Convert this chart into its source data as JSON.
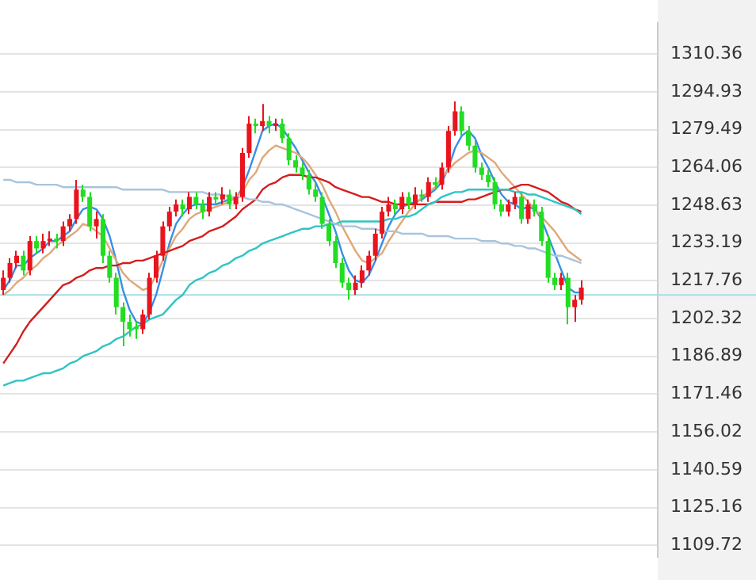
{
  "chart_data": {
    "type": "candlestick",
    "categories": [
      null,
      null,
      null,
      null,
      null,
      null,
      null,
      null,
      null,
      null,
      null,
      null,
      null,
      null,
      null,
      null,
      null,
      null,
      null,
      null,
      null,
      null,
      null,
      null,
      null,
      null,
      null,
      null,
      null,
      null,
      null,
      null,
      null,
      null,
      null,
      null,
      null,
      null,
      null,
      null,
      null,
      null,
      null,
      null,
      null,
      null,
      null,
      null,
      null,
      null,
      null,
      null,
      null,
      null,
      null,
      null,
      null,
      null,
      null,
      null,
      null,
      null,
      null,
      null,
      null,
      null,
      null,
      null,
      null,
      null,
      null,
      null,
      null,
      null,
      null,
      null,
      null,
      null,
      null,
      null,
      null,
      null,
      null,
      null,
      null,
      null,
      null,
      null,
      null,
      null,
      null,
      null,
      null,
      null,
      null,
      null,
      null,
      null,
      null
    ],
    "ohlc": [
      [
        1214,
        1222,
        1212,
        1219
      ],
      [
        1219,
        1227,
        1217,
        1225
      ],
      [
        1225,
        1230,
        1223,
        1228
      ],
      [
        1228,
        1230,
        1220,
        1222
      ],
      [
        1222,
        1236,
        1220,
        1234
      ],
      [
        1234,
        1236,
        1229,
        1231
      ],
      [
        1231,
        1237,
        1229,
        1234
      ],
      [
        1234,
        1238,
        1232,
        1235
      ],
      [
        1235,
        1237,
        1231,
        1234
      ],
      [
        1234,
        1242,
        1232,
        1240
      ],
      [
        1240,
        1245,
        1238,
        1243
      ],
      [
        1243,
        1259,
        1241,
        1255
      ],
      [
        1255,
        1257,
        1250,
        1252
      ],
      [
        1252,
        1254,
        1238,
        1240
      ],
      [
        1240,
        1246,
        1235,
        1243
      ],
      [
        1243,
        1245,
        1225,
        1228
      ],
      [
        1228,
        1230,
        1217,
        1219
      ],
      [
        1219,
        1221,
        1204,
        1207
      ],
      [
        1207,
        1209,
        1191,
        1201
      ],
      [
        1201,
        1204,
        1195,
        1198
      ],
      [
        1199,
        1201,
        1194,
        1198
      ],
      [
        1198,
        1206,
        1196,
        1204
      ],
      [
        1204,
        1221,
        1202,
        1219
      ],
      [
        1219,
        1230,
        1217,
        1228
      ],
      [
        1228,
        1242,
        1226,
        1240
      ],
      [
        1240,
        1248,
        1238,
        1246
      ],
      [
        1246,
        1251,
        1244,
        1249
      ],
      [
        1249,
        1251,
        1244,
        1247
      ],
      [
        1247,
        1254,
        1245,
        1252
      ],
      [
        1252,
        1254,
        1247,
        1249
      ],
      [
        1249,
        1251,
        1243,
        1246
      ],
      [
        1246,
        1254,
        1244,
        1252
      ],
      [
        1252,
        1254,
        1249,
        1251
      ],
      [
        1251,
        1256,
        1249,
        1253
      ],
      [
        1253,
        1255,
        1247,
        1249
      ],
      [
        1249,
        1254,
        1247,
        1252
      ],
      [
        1252,
        1272,
        1250,
        1270
      ],
      [
        1270,
        1285,
        1268,
        1282
      ],
      [
        1282,
        1284,
        1278,
        1281
      ],
      [
        1281,
        1290,
        1279,
        1283
      ],
      [
        1283,
        1285,
        1278,
        1281
      ],
      [
        1281,
        1284,
        1279,
        1282
      ],
      [
        1282,
        1284,
        1274,
        1276
      ],
      [
        1276,
        1278,
        1265,
        1267
      ],
      [
        1267,
        1269,
        1262,
        1264
      ],
      [
        1264,
        1266,
        1259,
        1261
      ],
      [
        1261,
        1263,
        1253,
        1255
      ],
      [
        1255,
        1258,
        1250,
        1252
      ],
      [
        1252,
        1254,
        1239,
        1241
      ],
      [
        1241,
        1243,
        1232,
        1234
      ],
      [
        1234,
        1236,
        1223,
        1225
      ],
      [
        1225,
        1227,
        1215,
        1217
      ],
      [
        1217,
        1219,
        1210,
        1214
      ],
      [
        1214,
        1220,
        1212,
        1217
      ],
      [
        1217,
        1224,
        1215,
        1222
      ],
      [
        1222,
        1230,
        1220,
        1228
      ],
      [
        1228,
        1239,
        1226,
        1237
      ],
      [
        1237,
        1248,
        1235,
        1246
      ],
      [
        1246,
        1252,
        1244,
        1249
      ],
      [
        1249,
        1251,
        1245,
        1247
      ],
      [
        1247,
        1254,
        1245,
        1252
      ],
      [
        1252,
        1254,
        1247,
        1249
      ],
      [
        1249,
        1256,
        1247,
        1253
      ],
      [
        1253,
        1255,
        1250,
        1252
      ],
      [
        1252,
        1260,
        1250,
        1258
      ],
      [
        1258,
        1260,
        1255,
        1257
      ],
      [
        1257,
        1266,
        1255,
        1264
      ],
      [
        1264,
        1281,
        1262,
        1279
      ],
      [
        1279,
        1291,
        1277,
        1287
      ],
      [
        1287,
        1289,
        1277,
        1279
      ],
      [
        1279,
        1281,
        1271,
        1273
      ],
      [
        1273,
        1275,
        1262,
        1264
      ],
      [
        1264,
        1266,
        1259,
        1261
      ],
      [
        1261,
        1263,
        1256,
        1258
      ],
      [
        1258,
        1260,
        1247,
        1249
      ],
      [
        1249,
        1251,
        1244,
        1246
      ],
      [
        1246,
        1251,
        1244,
        1249
      ],
      [
        1249,
        1254,
        1247,
        1252
      ],
      [
        1252,
        1254,
        1241,
        1243
      ],
      [
        1243,
        1251,
        1241,
        1249
      ],
      [
        1249,
        1251,
        1244,
        1246
      ],
      [
        1246,
        1248,
        1232,
        1234
      ],
      [
        1234,
        1236,
        1217,
        1219
      ],
      [
        1219,
        1221,
        1214,
        1216
      ],
      [
        1216,
        1221,
        1214,
        1219
      ],
      [
        1219,
        1221,
        1200,
        1207
      ],
      [
        1207,
        1212,
        1201,
        1210
      ],
      [
        1210,
        1218,
        1208,
        1215
      ],
      null,
      null,
      null,
      null,
      null,
      null,
      null,
      null,
      null,
      null,
      null
    ],
    "colors": [
      "#e8141e",
      "#e8141e",
      "#e8141e",
      "#22dd22",
      "#e8141e",
      "#22dd22",
      "#e8141e",
      "#e8141e",
      "#22dd22",
      "#e8141e",
      "#e8141e",
      "#e8141e",
      "#22dd22",
      "#22dd22",
      "#e8141e",
      "#22dd22",
      "#22dd22",
      "#22dd22",
      "#22dd22",
      "#22dd22",
      "#22dd22",
      "#e8141e",
      "#e8141e",
      "#e8141e",
      "#e8141e",
      "#e8141e",
      "#e8141e",
      "#22dd22",
      "#e8141e",
      "#22dd22",
      "#22dd22",
      "#e8141e",
      "#22dd22",
      "#e8141e",
      "#22dd22",
      "#e8141e",
      "#e8141e",
      "#e8141e",
      "#22dd22",
      "#e8141e",
      "#22dd22",
      "#e8141e",
      "#22dd22",
      "#22dd22",
      "#22dd22",
      "#22dd22",
      "#22dd22",
      "#22dd22",
      "#22dd22",
      "#22dd22",
      "#22dd22",
      "#22dd22",
      "#22dd22",
      "#e8141e",
      "#e8141e",
      "#e8141e",
      "#e8141e",
      "#e8141e",
      "#e8141e",
      "#22dd22",
      "#e8141e",
      "#22dd22",
      "#e8141e",
      "#22dd22",
      "#e8141e",
      "#22dd22",
      "#e8141e",
      "#e8141e",
      "#e8141e",
      "#22dd22",
      "#22dd22",
      "#22dd22",
      "#22dd22",
      "#22dd22",
      "#22dd22",
      "#22dd22",
      "#e8141e",
      "#e8141e",
      "#22dd22",
      "#e8141e",
      "#22dd22",
      "#22dd22",
      "#22dd22",
      "#22dd22",
      "#e8141e",
      "#22dd22",
      "#e8141e",
      "#e8141e",
      null,
      null,
      null,
      null,
      null,
      null,
      null,
      null,
      null,
      null,
      null
    ],
    "series": [
      {
        "type": "line",
        "color": "#a8c4dc",
        "values": [
          1259,
          1259,
          1258,
          1258,
          1258,
          1257,
          1257,
          1257,
          1257,
          1256,
          1256,
          1256,
          1256,
          1256,
          1256,
          1256,
          1256,
          1256,
          1255,
          1255,
          1255,
          1255,
          1255,
          1255,
          1255,
          1254,
          1254,
          1254,
          1254,
          1254,
          1254,
          1253,
          1253,
          1253,
          1252,
          1252,
          1252,
          1251,
          1251,
          1250,
          1250,
          1249,
          1249,
          1248,
          1247,
          1246,
          1245,
          1244,
          1243,
          1242,
          1241,
          1240,
          1240,
          1240,
          1239,
          1239,
          1239,
          1238,
          1238,
          1238,
          1237,
          1237,
          1237,
          1237,
          1236,
          1236,
          1236,
          1236,
          1235,
          1235,
          1235,
          1235,
          1234,
          1234,
          1234,
          1233,
          1233,
          1232,
          1232,
          1231,
          1231,
          1230,
          1229,
          1228,
          1228,
          1227,
          1226,
          1225,
          null,
          null,
          null,
          null,
          null,
          null,
          null,
          null,
          null,
          null,
          null
        ]
      },
      {
        "type": "line",
        "color": "#2ec4c4",
        "values": [
          1175,
          1176,
          1177,
          1177,
          1178,
          1179,
          1180,
          1180,
          1181,
          1182,
          1184,
          1185,
          1187,
          1188,
          1189,
          1191,
          1192,
          1194,
          1195,
          1197,
          1199,
          1200,
          1202,
          1203,
          1204,
          1207,
          1210,
          1212,
          1216,
          1218,
          1219,
          1221,
          1222,
          1224,
          1225,
          1227,
          1228,
          1230,
          1231,
          1233,
          1234,
          1235,
          1236,
          1237,
          1238,
          1239,
          1239,
          1240,
          1240,
          1241,
          1241,
          1242,
          1242,
          1242,
          1242,
          1242,
          1242,
          1242,
          1243,
          1243,
          1244,
          1244,
          1245,
          1247,
          1249,
          1250,
          1252,
          1253,
          1254,
          1254,
          1255,
          1255,
          1255,
          1255,
          1255,
          1255,
          1255,
          1254,
          1254,
          1253,
          1253,
          1252,
          1251,
          1250,
          1249,
          1248,
          1247,
          1245,
          null,
          null,
          null,
          null,
          null,
          null,
          null,
          null,
          null,
          null,
          null
        ]
      },
      {
        "type": "line",
        "color": "#d41e1e",
        "values": [
          1184,
          1188,
          1192,
          1197,
          1201,
          1204,
          1207,
          1210,
          1213,
          1216,
          1217,
          1219,
          1220,
          1222,
          1223,
          1223,
          1224,
          1224,
          1225,
          1225,
          1226,
          1226,
          1227,
          1228,
          1229,
          1230,
          1231,
          1232,
          1234,
          1235,
          1236,
          1238,
          1239,
          1240,
          1242,
          1244,
          1247,
          1249,
          1251,
          1255,
          1257,
          1258,
          1260,
          1261,
          1261,
          1261,
          1260,
          1260,
          1259,
          1258,
          1256,
          1255,
          1254,
          1253,
          1252,
          1252,
          1251,
          1250,
          1250,
          1249,
          1249,
          1249,
          1249,
          1249,
          1249,
          1250,
          1250,
          1250,
          1250,
          1250,
          1251,
          1251,
          1252,
          1253,
          1254,
          1255,
          1255,
          1256,
          1257,
          1257,
          1256,
          1255,
          1254,
          1252,
          1250,
          1249,
          1247,
          1246,
          null,
          null,
          null,
          null,
          null,
          null,
          null,
          null,
          null,
          null,
          null
        ]
      },
      {
        "type": "line",
        "color": "#e0a878",
        "values": [
          1212,
          1214,
          1217,
          1219,
          1222,
          1224,
          1227,
          1229,
          1232,
          1234,
          1236,
          1238,
          1241,
          1240,
          1238,
          1236,
          1231,
          1226,
          1221,
          1218,
          1216,
          1214,
          1215,
          1220,
          1226,
          1231,
          1236,
          1239,
          1243,
          1245,
          1246,
          1247,
          1248,
          1249,
          1250,
          1252,
          1254,
          1259,
          1262,
          1268,
          1271,
          1273,
          1272,
          1271,
          1270,
          1268,
          1265,
          1261,
          1257,
          1251,
          1246,
          1240,
          1235,
          1230,
          1226,
          1225,
          1227,
          1229,
          1234,
          1238,
          1242,
          1246,
          1249,
          1252,
          1254,
          1256,
          1260,
          1263,
          1266,
          1268,
          1270,
          1271,
          1270,
          1268,
          1266,
          1262,
          1259,
          1256,
          1253,
          1250,
          1247,
          1244,
          1241,
          1238,
          1234,
          1230,
          1228,
          1226,
          null,
          null,
          null,
          null,
          null,
          null,
          null,
          null,
          null,
          null,
          null
        ]
      },
      {
        "type": "line",
        "color": "#3a8ee6",
        "values": [
          1214,
          1218,
          1224,
          1224,
          1227,
          1229,
          1231,
          1234,
          1234,
          1236,
          1238,
          1243,
          1247,
          1248,
          1247,
          1243,
          1236,
          1226,
          1214,
          1206,
          1201,
          1200,
          1205,
          1212,
          1222,
          1233,
          1241,
          1245,
          1248,
          1249,
          1249,
          1249,
          1249,
          1250,
          1251,
          1251,
          1256,
          1263,
          1271,
          1279,
          1281,
          1282,
          1280,
          1276,
          1272,
          1267,
          1262,
          1258,
          1252,
          1245,
          1238,
          1229,
          1222,
          1218,
          1217,
          1220,
          1226,
          1233,
          1240,
          1245,
          1248,
          1249,
          1250,
          1251,
          1253,
          1255,
          1258,
          1264,
          1272,
          1277,
          1279,
          1276,
          1269,
          1264,
          1258,
          1253,
          1250,
          1249,
          1247,
          1248,
          1247,
          1243,
          1236,
          1229,
          1222,
          1215,
          1213,
          1213,
          null,
          null,
          null,
          null,
          null,
          null,
          null,
          null,
          null,
          null,
          null
        ]
      }
    ],
    "ylim": [
      1105,
      1323
    ],
    "yticks": [
      1109.72,
      1125.16,
      1140.59,
      1156.02,
      1171.46,
      1186.89,
      1202.32,
      1217.76,
      1233.19,
      1248.63,
      1264.06,
      1279.49,
      1294.93,
      1310.36
    ],
    "ref_lines": [
      {
        "axis": "y",
        "value": 1212,
        "color": "#a8dce4"
      }
    ],
    "grid": "y",
    "tick_labels": "y",
    "marker": "none",
    "line_style": "solid"
  }
}
